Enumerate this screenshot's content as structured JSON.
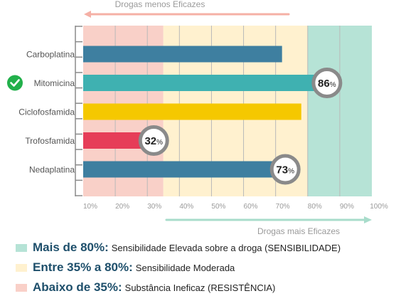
{
  "chart_data": {
    "type": "bar",
    "orientation": "horizontal",
    "categories": [
      "Carboplatina",
      "Mitomicina",
      "Ciclofosfamida",
      "Trofosfamida",
      "Nedaplatina"
    ],
    "values": [
      72,
      86,
      78,
      32,
      73
    ],
    "bar_colors": [
      "#3e7fa0",
      "#3fb1b1",
      "#f5c800",
      "#e63d58",
      "#3e7fa0"
    ],
    "value_labels": [
      "",
      "86%",
      "",
      "32%",
      "73%"
    ],
    "xlim": [
      10,
      100
    ],
    "x_ticks": [
      10,
      20,
      30,
      40,
      50,
      60,
      70,
      80,
      90,
      100
    ],
    "x_tick_labels": [
      "10%",
      "20%",
      "30%",
      "40%",
      "50%",
      "60%",
      "70%",
      "80%",
      "90%",
      "100%"
    ],
    "grid": true,
    "zones": [
      {
        "from": 10,
        "to": 35,
        "color": "#f9d0c8"
      },
      {
        "from": 35,
        "to": 80,
        "color": "#fff1cf"
      },
      {
        "from": 80,
        "to": 100,
        "color": "#b6e3d6"
      }
    ],
    "highlighted_category": "Mitomicina",
    "check_icon": "check-circle-icon",
    "check_color": "#22b04b",
    "top_arrow_label": "Drogas menos Eficazes",
    "top_arrow_color": "#f5b0a6",
    "bottom_arrow_label": "Drogas mais Eficazes",
    "bottom_arrow_color": "#a8dccb",
    "axis_color": "#8a8a8a",
    "grid_color": "#b9b9b9",
    "badge_ring_color": "#8a8a8a"
  },
  "legend": [
    {
      "range": "Mais de 80%:",
      "description": "Sensibilidade Elevada sobre a droga (SENSIBILIDADE)",
      "color": "#b6e3d6"
    },
    {
      "range": "Entre 35% a 80%:",
      "description": "Sensibilidade Moderada",
      "color": "#fff1cf"
    },
    {
      "range": "Abaixo de 35%:",
      "description": "Substância Ineficaz (RESISTÊNCIA)",
      "color": "#f9d0c8"
    }
  ]
}
